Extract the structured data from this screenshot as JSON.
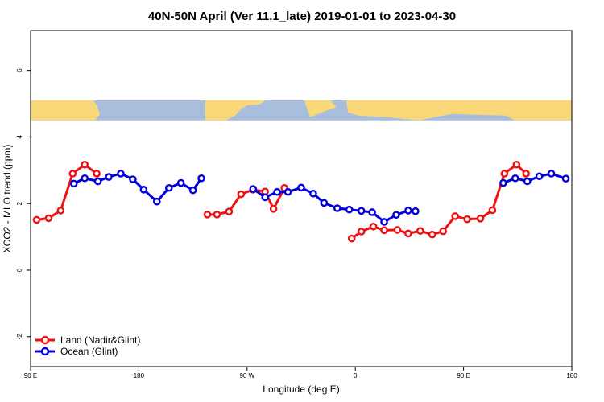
{
  "chart_data": {
    "type": "line",
    "title": "40N-50N April (Ver 11.1_late)   2019-01-01 to 2023-04-30",
    "xlabel": "Longitude (deg E)",
    "ylabel": "XCO2 - MLO trend (ppm)",
    "xlim": [
      90,
      540
    ],
    "ylim": [
      -2.9,
      7.2
    ],
    "x_ticks": [
      {
        "value": 90,
        "label": "90 E"
      },
      {
        "value": 180,
        "label": "180"
      },
      {
        "value": 270,
        "label": "90 W"
      },
      {
        "value": 360,
        "label": "0"
      },
      {
        "value": 450,
        "label": "90 E"
      },
      {
        "value": 540,
        "label": "180"
      }
    ],
    "y_ticks": [
      {
        "value": -2,
        "label": "-2"
      },
      {
        "value": 0,
        "label": "0"
      },
      {
        "value": 2,
        "label": "2"
      },
      {
        "value": 4,
        "label": "4"
      },
      {
        "value": 6,
        "label": "6"
      }
    ],
    "map_band": {
      "ymin": 4.5,
      "ymax": 5.1,
      "ocean_color": "#a8bedd",
      "land_color": "#f8d878"
    },
    "series": [
      {
        "name": "Land (Nadir&Glint)",
        "color": "#ee1111",
        "segments": [
          [
            [
              95,
              1.51
            ],
            [
              105,
              1.56
            ],
            [
              115,
              1.79
            ],
            [
              125,
              2.9
            ],
            [
              135,
              3.17
            ],
            [
              145,
              2.9
            ]
          ],
          [
            [
              237,
              1.67
            ],
            [
              245,
              1.67
            ],
            [
              255,
              1.76
            ],
            [
              265,
              2.28
            ],
            [
              275,
              2.42
            ],
            [
              285,
              2.36
            ],
            [
              292,
              1.84
            ],
            [
              301,
              2.47
            ]
          ],
          [
            [
              357,
              0.95
            ],
            [
              365,
              1.16
            ],
            [
              375,
              1.31
            ],
            [
              384,
              1.2
            ],
            [
              395,
              1.21
            ],
            [
              404,
              1.1
            ],
            [
              414,
              1.18
            ],
            [
              424,
              1.07
            ],
            [
              433,
              1.17
            ],
            [
              443,
              1.62
            ],
            [
              453,
              1.53
            ],
            [
              464,
              1.55
            ],
            [
              474,
              1.8
            ],
            [
              484,
              2.9
            ],
            [
              494,
              3.17
            ],
            [
              502,
              2.9
            ]
          ]
        ]
      },
      {
        "name": "Ocean (Glint)",
        "color": "#0000dd",
        "segments": [
          [
            [
              126,
              2.6
            ],
            [
              135,
              2.76
            ],
            [
              146,
              2.67
            ],
            [
              155,
              2.8
            ],
            [
              165,
              2.9
            ],
            [
              175,
              2.73
            ],
            [
              184,
              2.42
            ],
            [
              195,
              2.06
            ],
            [
              205,
              2.47
            ],
            [
              215,
              2.62
            ],
            [
              225,
              2.4
            ],
            [
              232,
              2.76
            ]
          ],
          [
            [
              275,
              2.44
            ],
            [
              285,
              2.19
            ],
            [
              295,
              2.35
            ],
            [
              304,
              2.35
            ],
            [
              315,
              2.48
            ],
            [
              325,
              2.3
            ],
            [
              334,
              2.02
            ],
            [
              345,
              1.86
            ],
            [
              355,
              1.82
            ],
            [
              365,
              1.78
            ],
            [
              374,
              1.74
            ],
            [
              384,
              1.45
            ],
            [
              394,
              1.66
            ],
            [
              404,
              1.79
            ],
            [
              410,
              1.77
            ]
          ],
          [
            [
              483,
              2.62
            ],
            [
              493,
              2.76
            ],
            [
              503,
              2.67
            ],
            [
              513,
              2.82
            ],
            [
              523,
              2.9
            ],
            [
              535,
              2.75
            ]
          ]
        ]
      }
    ]
  }
}
